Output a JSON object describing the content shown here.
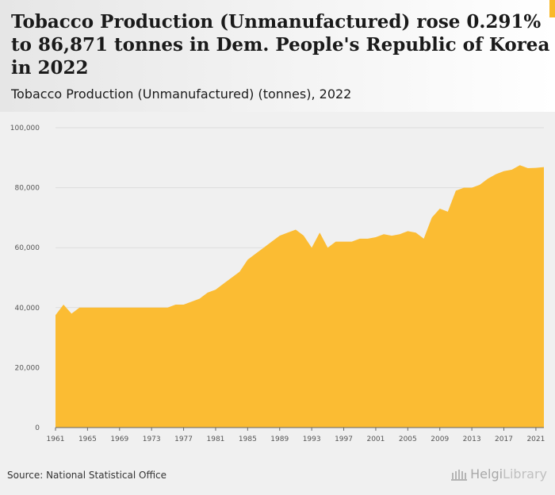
{
  "title": "Tobacco Production (Unmanufactured) rose 0.291% to 86,871 tonnes in Dem. People's Republic of Korea in 2022",
  "subtitle": "Tobacco Production (Unmanufactured) (tonnes), 2022",
  "source": "Source: National Statistical Office",
  "brand": {
    "part1": "Helgi",
    "part2": "Library"
  },
  "colors": {
    "area": "#fbbc33",
    "background": "#f0f0f0",
    "grid": "#dddddd",
    "axis": "#666666"
  },
  "chart_data": {
    "type": "area",
    "x": [
      1961,
      1962,
      1963,
      1964,
      1965,
      1966,
      1967,
      1968,
      1969,
      1970,
      1971,
      1972,
      1973,
      1974,
      1975,
      1976,
      1977,
      1978,
      1979,
      1980,
      1981,
      1982,
      1983,
      1984,
      1985,
      1986,
      1987,
      1988,
      1989,
      1990,
      1991,
      1992,
      1993,
      1994,
      1995,
      1996,
      1997,
      1998,
      1999,
      2000,
      2001,
      2002,
      2003,
      2004,
      2005,
      2006,
      2007,
      2008,
      2009,
      2010,
      2011,
      2012,
      2013,
      2014,
      2015,
      2016,
      2017,
      2018,
      2019,
      2020,
      2021,
      2022
    ],
    "series": [
      {
        "values": [
          37500,
          41000,
          38000,
          40000,
          40000,
          40000,
          40000,
          40000,
          40000,
          40000,
          40000,
          40000,
          40000,
          40000,
          40000,
          41000,
          41000,
          42000,
          43000,
          45000,
          46000,
          48000,
          50000,
          52000,
          56000,
          58000,
          60000,
          62000,
          64000,
          65000,
          66000,
          64000,
          60000,
          65000,
          60000,
          62000,
          62000,
          62000,
          63000,
          63000,
          63500,
          64500,
          64000,
          64500,
          65500,
          65000,
          63000,
          70000,
          73000,
          72000,
          79000,
          80000,
          80000,
          81000,
          83000,
          84500,
          85500,
          86000,
          87500,
          86500,
          86620,
          86871
        ]
      }
    ],
    "xticks": [
      1961,
      1965,
      1969,
      1973,
      1977,
      1981,
      1985,
      1989,
      1993,
      1997,
      2001,
      2005,
      2009,
      2013,
      2017,
      2021
    ],
    "yticks": [
      0,
      20000,
      40000,
      60000,
      80000,
      100000
    ],
    "ytick_labels": [
      "0",
      "20,000",
      "40,000",
      "60,000",
      "80,000",
      "100,000"
    ],
    "ylim": [
      0,
      100000
    ],
    "xlabel": "",
    "ylabel": "",
    "grid": true,
    "legend": "none"
  }
}
